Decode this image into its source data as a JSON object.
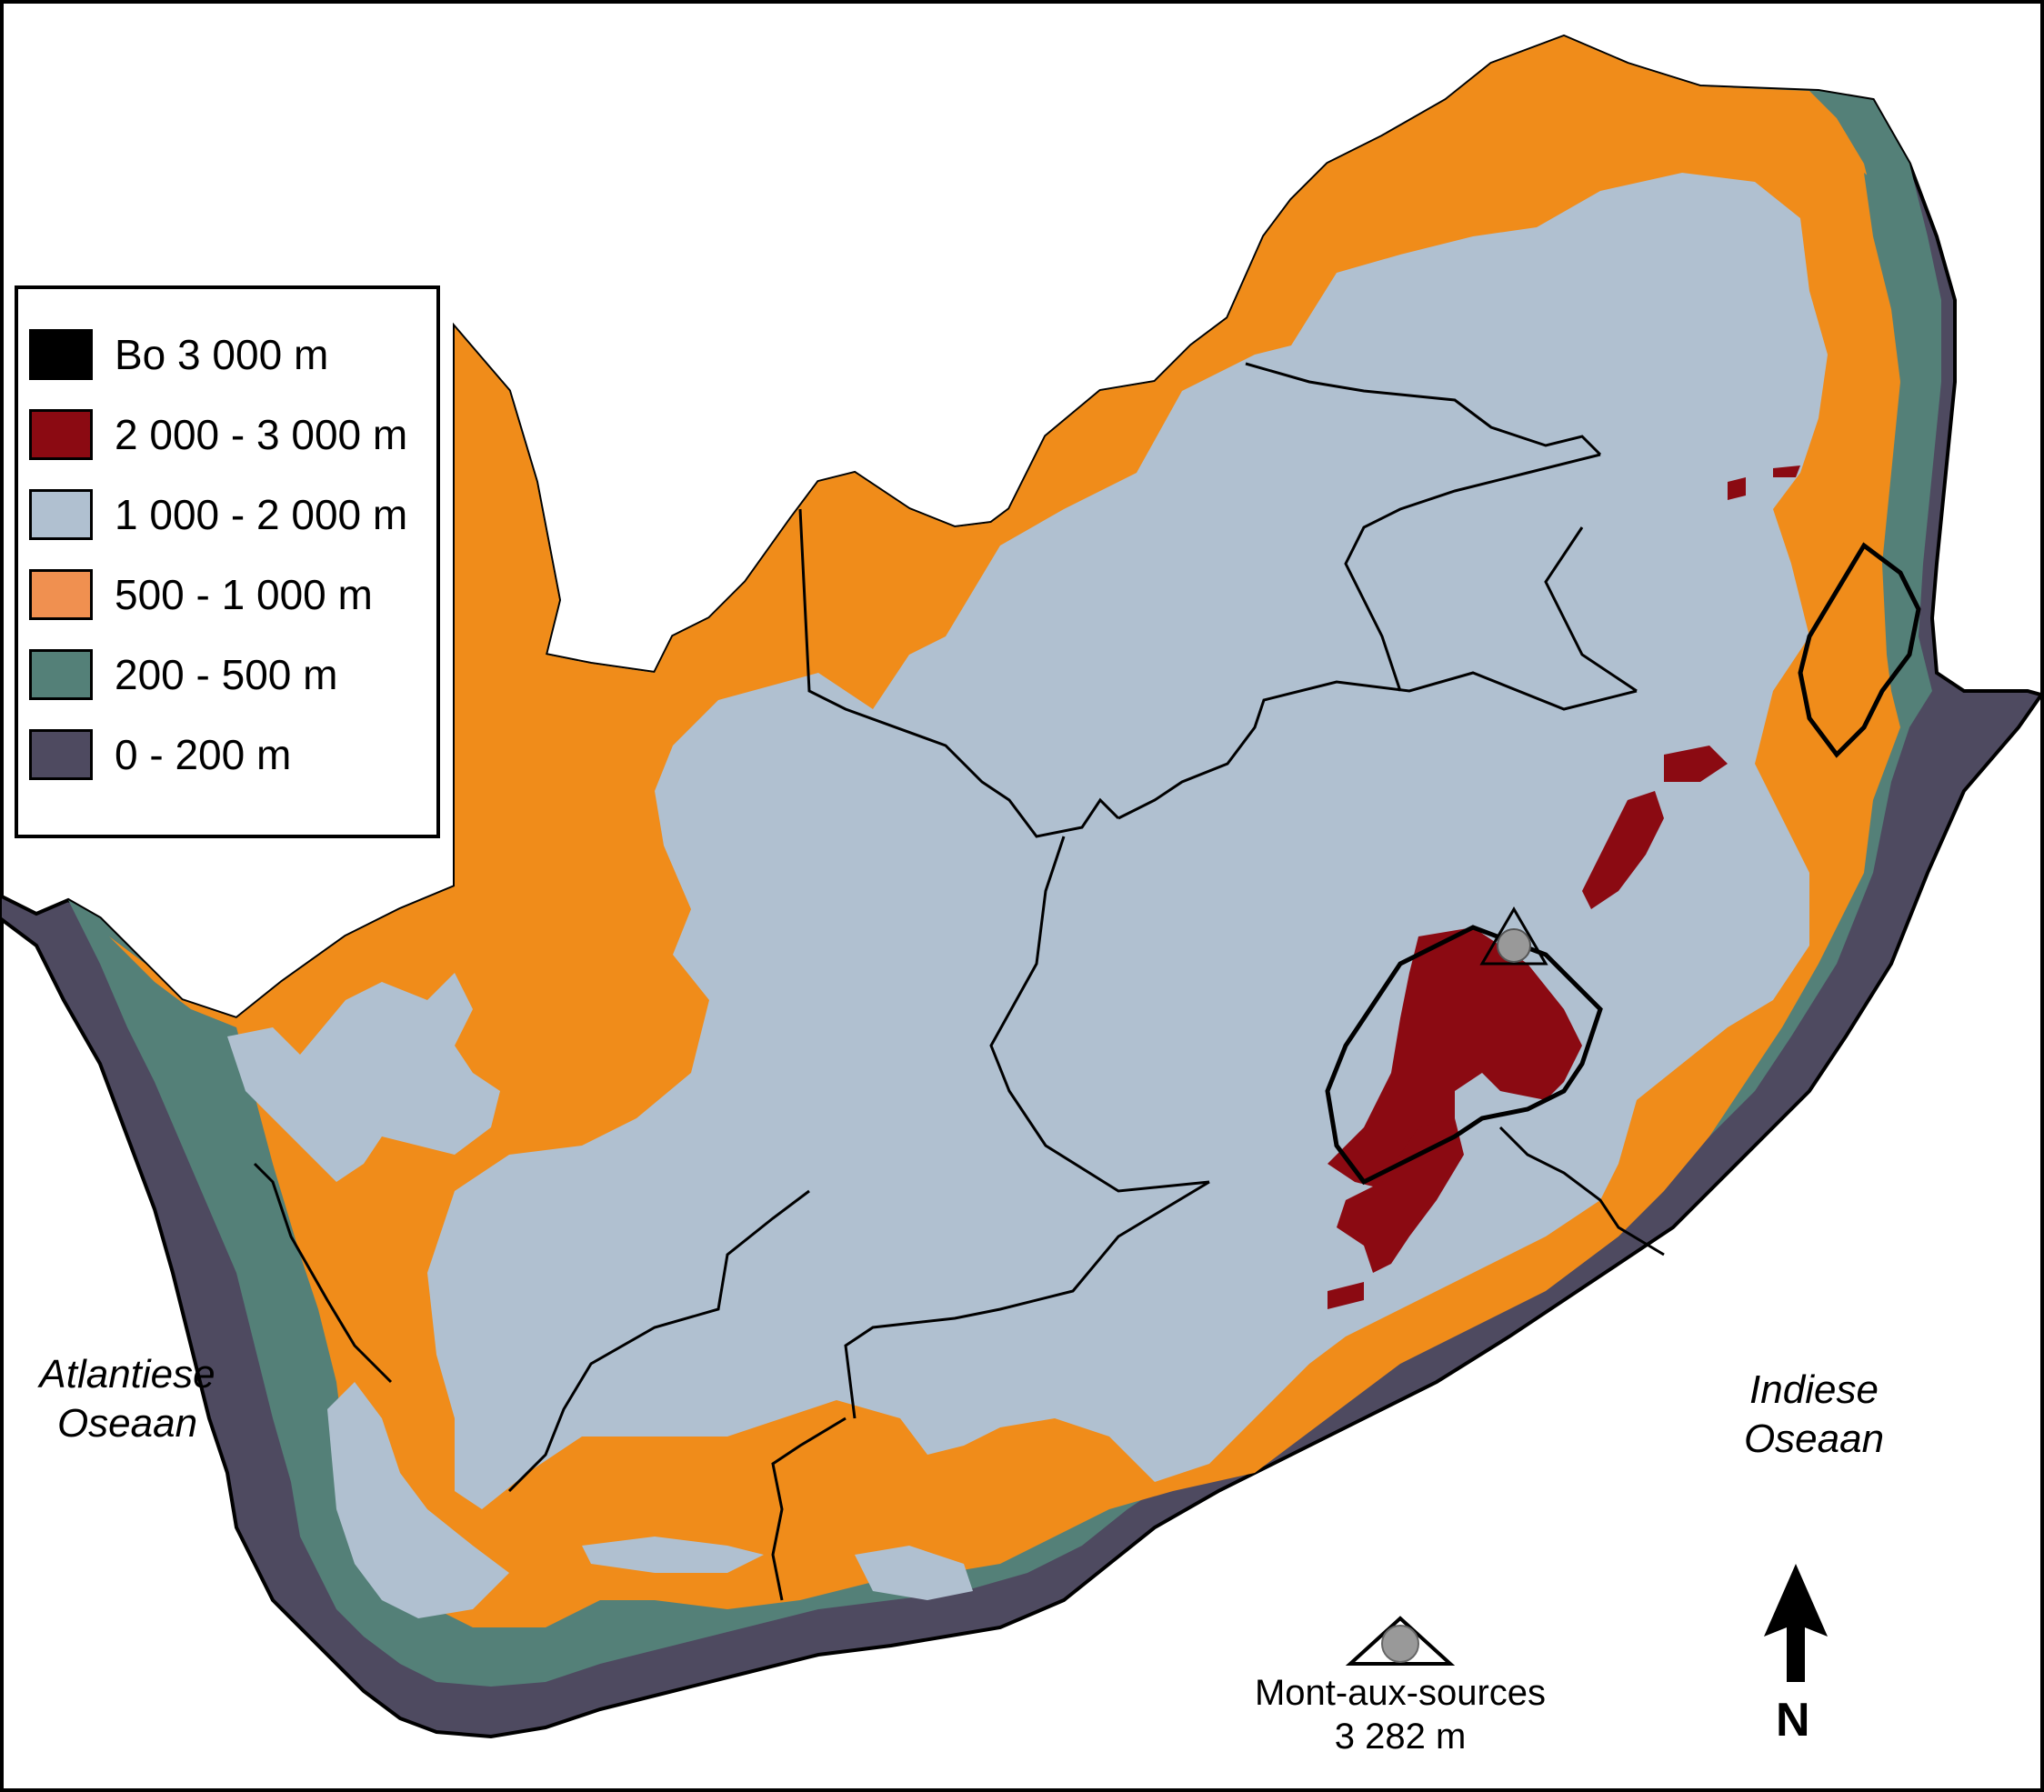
{
  "legend": {
    "items": [
      {
        "label": "Bo 3 000 m",
        "color": "#000000"
      },
      {
        "label": "2 000 - 3 000 m",
        "color": "#8b0a12"
      },
      {
        "label": "1 000 - 2 000 m",
        "color": "#b0c0d0"
      },
      {
        "label": "500 - 1 000 m",
        "color": "#f09050"
      },
      {
        "label": "200 - 500 m",
        "color": "#548078"
      },
      {
        "label": "0 - 200 m",
        "color": "#4e4a60"
      }
    ]
  },
  "oceans": {
    "atlantic": {
      "line1": "Atlantiese",
      "line2": "Oseaan"
    },
    "indian": {
      "line1": "Indiese",
      "line2": "Oseaan"
    }
  },
  "peak": {
    "name": "Mont-aux-sources",
    "elevation": "3 282 m"
  },
  "north_arrow": {
    "label": "N"
  },
  "colors": {
    "plateau": "#b0c0d0",
    "escarpment": "#f08c1a",
    "lowland": "#548078",
    "coast": "#4e4a60",
    "highland": "#8b0a12"
  }
}
